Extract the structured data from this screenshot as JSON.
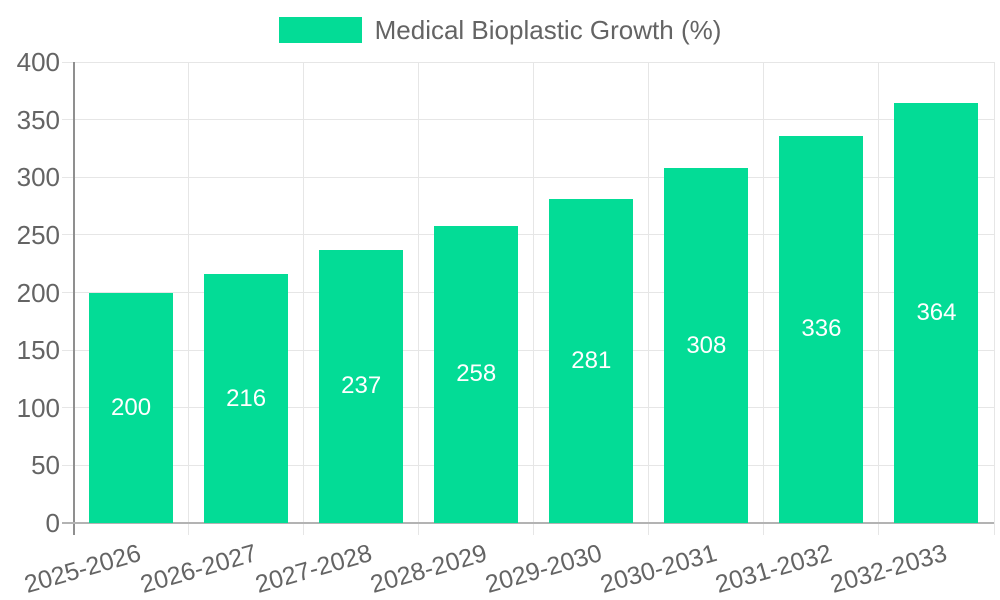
{
  "chart_data": {
    "type": "bar",
    "title": "Medical Bioplastic Growth (%)",
    "series_label": "Medical Bioplastic Growth (%)",
    "categories": [
      "2025-2026",
      "2026-2027",
      "2027-2028",
      "2028-2029",
      "2029-2030",
      "2030-2031",
      "2031-2032",
      "2032-2033"
    ],
    "values": [
      200,
      216,
      237,
      258,
      281,
      308,
      336,
      364
    ],
    "xlabel": "",
    "ylabel": "",
    "ylim": [
      0,
      400
    ],
    "y_ticks": [
      0,
      50,
      100,
      150,
      200,
      250,
      300,
      350,
      400
    ],
    "grid": true,
    "legend_position": "top",
    "x_label_rotation_deg": -16,
    "bar_color": "#03dc96",
    "value_label_color": "#ffffff",
    "axis_label_color": "#646464",
    "grid_color": "#e6e6e6",
    "y_axis_line_color": "#8f8f8f",
    "x_axis_line_color": "#b3b3b3",
    "background_color": "#ffffff"
  }
}
